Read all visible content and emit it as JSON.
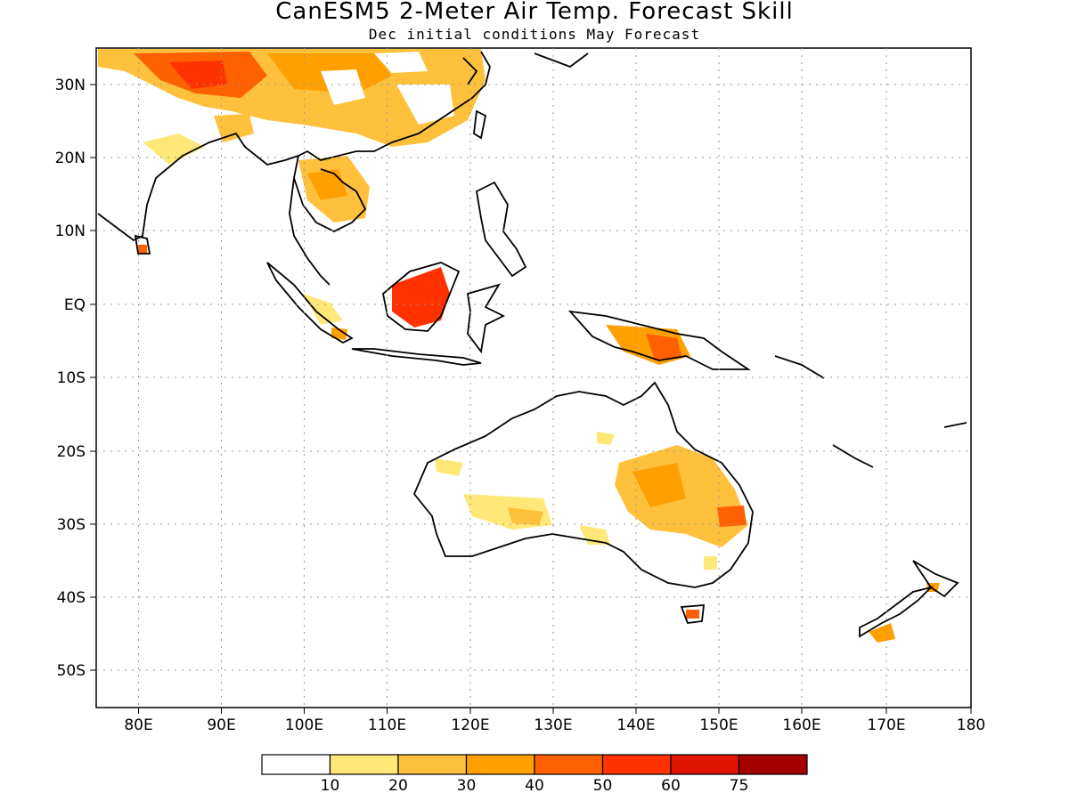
{
  "title": "CanESM5 2-Meter Air Temp. Forecast Skill",
  "subtitle": "Dec initial conditions  May Forecast",
  "map": {
    "lon_range": [
      75,
      180
    ],
    "lat_range": [
      -55,
      35
    ],
    "lon_ticks": [
      "80E",
      "90E",
      "100E",
      "110E",
      "120E",
      "130E",
      "140E",
      "150E",
      "160E",
      "170E",
      "180"
    ],
    "lat_ticks": [
      "30N",
      "20N",
      "10N",
      "EQ",
      "10S",
      "20S",
      "30S",
      "40S",
      "50S"
    ]
  },
  "colorbar": {
    "colors": [
      "#ffffff",
      "#ffe878",
      "#ffc03c",
      "#ffa000",
      "#ff6000",
      "#ff3200",
      "#e11400",
      "#a50000"
    ],
    "labels": [
      "10",
      "20",
      "30",
      "40",
      "50",
      "60",
      "75"
    ]
  }
}
